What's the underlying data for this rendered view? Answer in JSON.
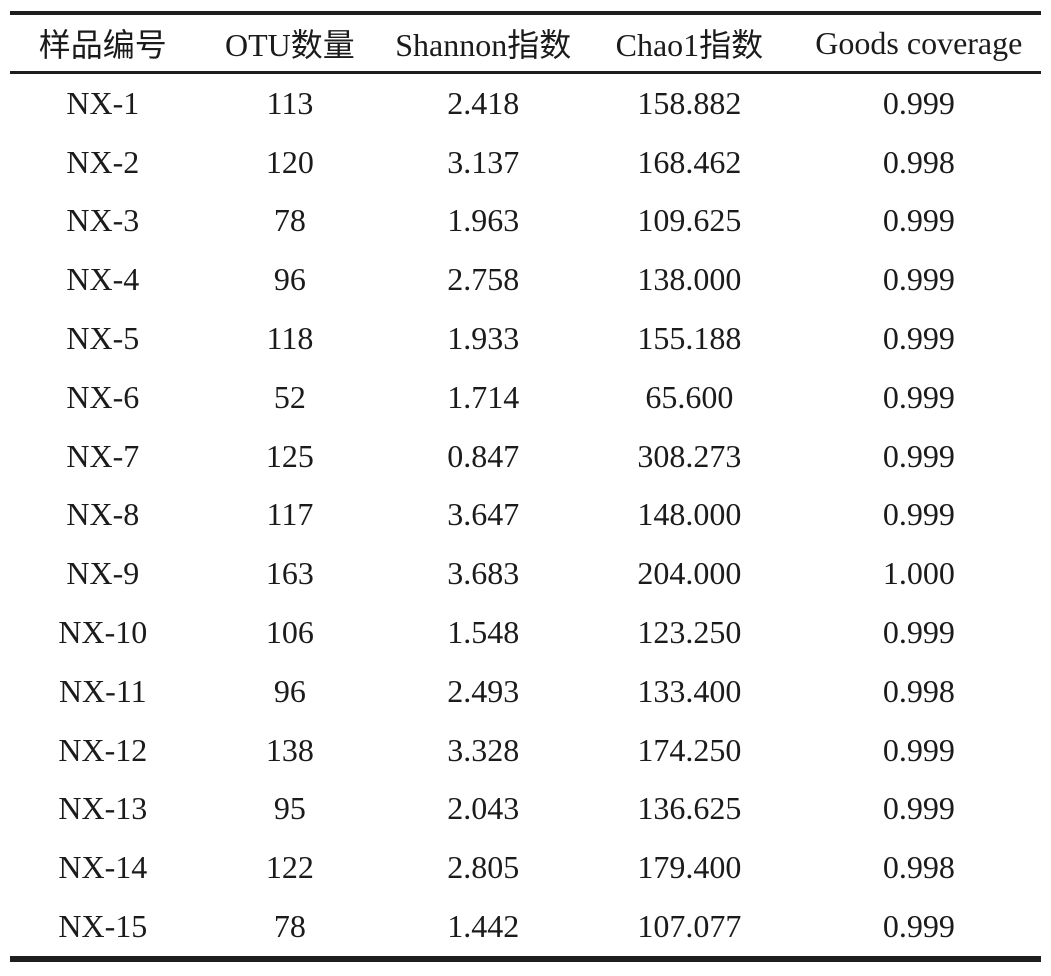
{
  "page": {
    "background_color": "#ffffff",
    "text_color": "#1b1b1b",
    "rule_color": "#1e1e1e"
  },
  "table": {
    "headers": [
      "样品编号",
      "OTU数量",
      "Shannon指数",
      "Chao1指数",
      "Goods coverage"
    ],
    "rows": [
      [
        "NX-1",
        "113",
        "2.418",
        "158.882",
        "0.999"
      ],
      [
        "NX-2",
        "120",
        "3.137",
        "168.462",
        "0.998"
      ],
      [
        "NX-3",
        "78",
        "1.963",
        "109.625",
        "0.999"
      ],
      [
        "NX-4",
        "96",
        "2.758",
        "138.000",
        "0.999"
      ],
      [
        "NX-5",
        "118",
        "1.933",
        "155.188",
        "0.999"
      ],
      [
        "NX-6",
        "52",
        "1.714",
        "65.600",
        "0.999"
      ],
      [
        "NX-7",
        "125",
        "0.847",
        "308.273",
        "0.999"
      ],
      [
        "NX-8",
        "117",
        "3.647",
        "148.000",
        "0.999"
      ],
      [
        "NX-9",
        "163",
        "3.683",
        "204.000",
        "1.000"
      ],
      [
        "NX-10",
        "106",
        "1.548",
        "123.250",
        "0.999"
      ],
      [
        "NX-11",
        "96",
        "2.493",
        "133.400",
        "0.998"
      ],
      [
        "NX-12",
        "138",
        "3.328",
        "174.250",
        "0.999"
      ],
      [
        "NX-13",
        "95",
        "2.043",
        "136.625",
        "0.999"
      ],
      [
        "NX-14",
        "122",
        "2.805",
        "179.400",
        "0.998"
      ],
      [
        "NX-15",
        "78",
        "1.442",
        "107.077",
        "0.999"
      ]
    ]
  },
  "chart_data": {
    "type": "table",
    "columns": [
      "样品编号",
      "OTU数量",
      "Shannon指数",
      "Chao1指数",
      "Goods coverage"
    ],
    "sample_ids": [
      "NX-1",
      "NX-2",
      "NX-3",
      "NX-4",
      "NX-5",
      "NX-6",
      "NX-7",
      "NX-8",
      "NX-9",
      "NX-10",
      "NX-11",
      "NX-12",
      "NX-13",
      "NX-14",
      "NX-15"
    ],
    "otu_counts": [
      113,
      120,
      78,
      96,
      118,
      52,
      125,
      117,
      163,
      106,
      96,
      138,
      95,
      122,
      78
    ],
    "shannon_index": [
      2.418,
      3.137,
      1.963,
      2.758,
      1.933,
      1.714,
      0.847,
      3.647,
      3.683,
      1.548,
      2.493,
      3.328,
      2.043,
      2.805,
      1.442
    ],
    "chao1_index": [
      158.882,
      168.462,
      109.625,
      138.0,
      155.188,
      65.6,
      308.273,
      148.0,
      204.0,
      123.25,
      133.4,
      174.25,
      136.625,
      179.4,
      107.077
    ],
    "goods_coverage": [
      0.999,
      0.998,
      0.999,
      0.999,
      0.999,
      0.999,
      0.999,
      0.999,
      1.0,
      0.999,
      0.998,
      0.999,
      0.999,
      0.998,
      0.999
    ]
  }
}
